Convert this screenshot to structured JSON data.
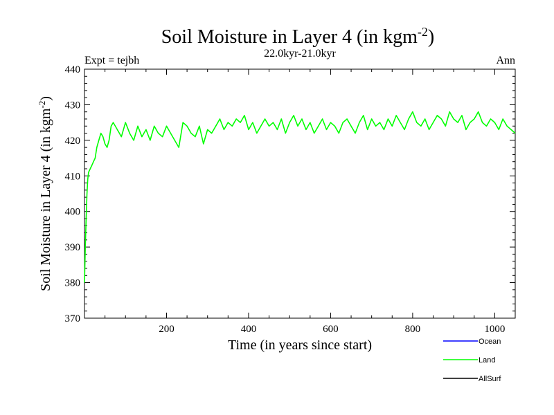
{
  "chart_data": {
    "type": "line",
    "title_main": "Soil Moisture in Layer 4 (in kgm",
    "title_sup": "-2",
    "title_close": ")",
    "subtitle": "22.0kyr-21.0kyr",
    "left_note": "Expt = tejbh",
    "right_note": "Ann",
    "xlabel": "Time (in years since start)",
    "ylabel_main": "Soil Moisture in Layer 4 (in kgm",
    "ylabel_sup": "-2",
    "ylabel_close": ")",
    "xlim": [
      0,
      1050
    ],
    "ylim": [
      370,
      440
    ],
    "x_ticks": [
      200,
      400,
      600,
      800,
      1000
    ],
    "x_tick_labels": [
      "200",
      "400",
      "600",
      "800",
      "1000"
    ],
    "y_ticks": [
      370,
      380,
      390,
      400,
      410,
      420,
      430,
      440
    ],
    "y_tick_labels": [
      "370",
      "380",
      "390",
      "400",
      "410",
      "420",
      "430",
      "440"
    ],
    "legend_position": "bottom-right",
    "series": [
      {
        "name": "Ocean",
        "color": "#0000ff",
        "values": []
      },
      {
        "name": "Land",
        "color": "#00ff00",
        "x": [
          0,
          2,
          4,
          6,
          8,
          10,
          14,
          18,
          22,
          26,
          30,
          35,
          40,
          45,
          50,
          55,
          60,
          65,
          70,
          80,
          90,
          100,
          110,
          120,
          130,
          140,
          150,
          160,
          170,
          180,
          190,
          200,
          210,
          220,
          230,
          240,
          250,
          260,
          270,
          280,
          290,
          300,
          310,
          320,
          330,
          340,
          350,
          360,
          370,
          380,
          390,
          400,
          410,
          420,
          430,
          440,
          450,
          460,
          470,
          480,
          490,
          500,
          510,
          520,
          530,
          540,
          550,
          560,
          570,
          580,
          590,
          600,
          610,
          620,
          630,
          640,
          650,
          660,
          670,
          680,
          690,
          700,
          710,
          720,
          730,
          740,
          750,
          760,
          770,
          780,
          790,
          800,
          810,
          820,
          830,
          840,
          850,
          860,
          870,
          880,
          890,
          900,
          910,
          920,
          930,
          940,
          950,
          960,
          970,
          980,
          990,
          1000,
          1010,
          1020,
          1030,
          1040,
          1050
        ],
        "values": [
          380,
          390,
          398,
          405,
          409,
          411,
          412,
          413,
          414,
          415,
          418,
          420,
          422,
          421,
          419,
          418,
          420,
          424,
          425,
          423,
          421,
          425,
          422,
          420,
          424,
          421,
          423,
          420,
          424,
          422,
          421,
          424,
          422,
          420,
          418,
          425,
          424,
          422,
          421,
          424,
          419,
          423,
          422,
          424,
          426,
          423,
          425,
          424,
          426,
          425,
          427,
          423,
          425,
          422,
          424,
          426,
          424,
          425,
          423,
          426,
          422,
          425,
          427,
          424,
          426,
          423,
          425,
          422,
          424,
          426,
          423,
          425,
          424,
          422,
          425,
          426,
          424,
          422,
          425,
          427,
          423,
          426,
          424,
          425,
          423,
          426,
          424,
          427,
          425,
          423,
          426,
          428,
          425,
          424,
          426,
          423,
          425,
          427,
          426,
          424,
          428,
          426,
          425,
          427,
          423,
          425,
          426,
          428,
          425,
          424,
          426,
          425,
          423,
          426,
          424,
          423,
          422
        ]
      },
      {
        "name": "AllSurf",
        "color": "#000000",
        "values": []
      }
    ]
  }
}
